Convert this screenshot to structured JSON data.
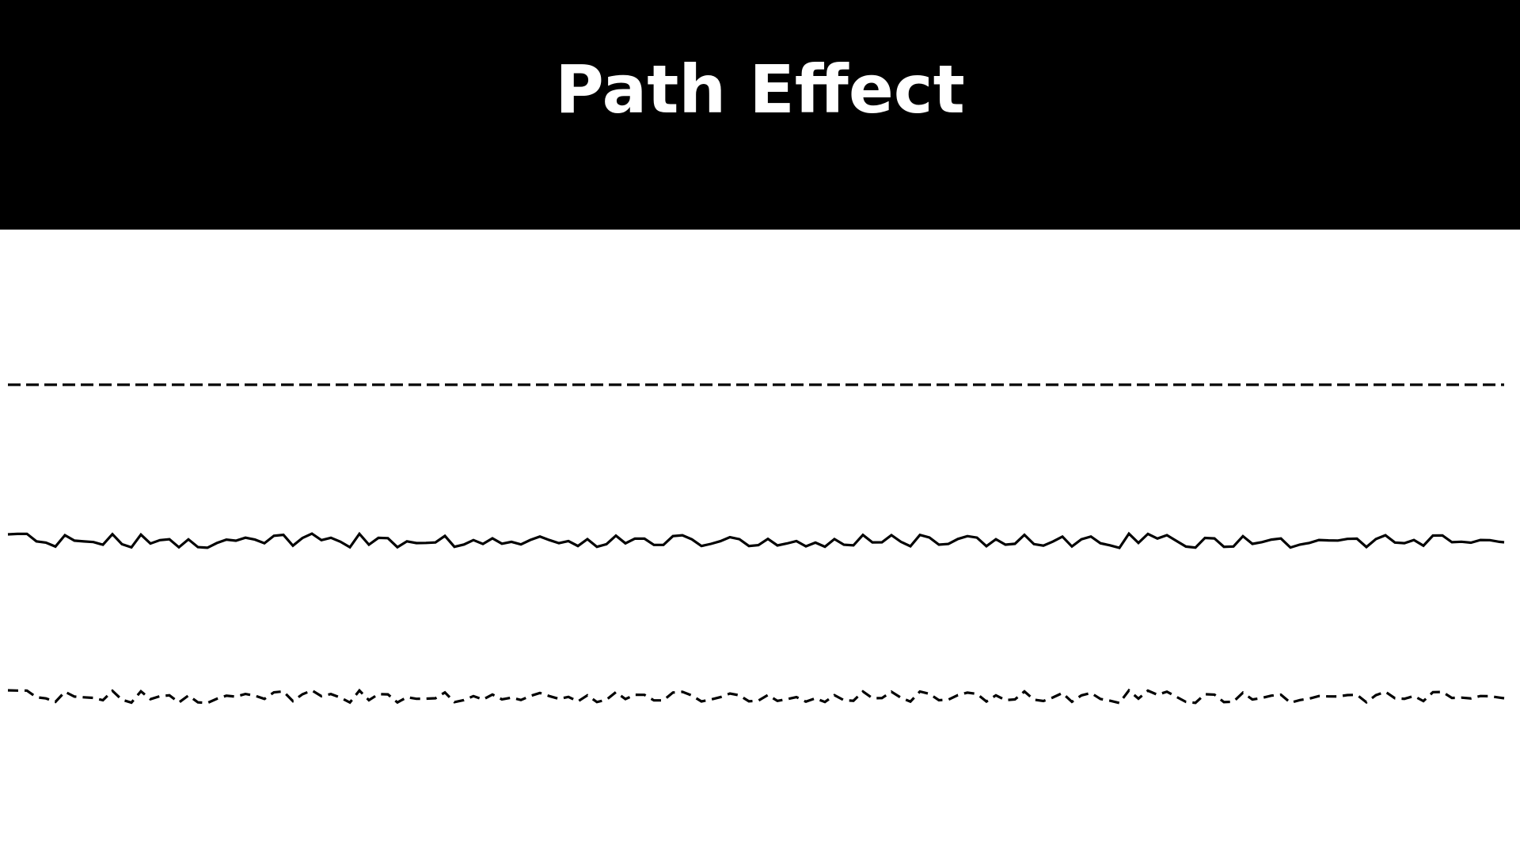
{
  "toolbar": {
    "title": "Path Effect",
    "background_color": "#000000",
    "title_color": "#ffffff"
  },
  "canvas": {
    "background_color": "#ffffff",
    "stroke_color": "#000000",
    "lines": [
      {
        "effect": "dash"
      },
      {
        "effect": "discrete"
      },
      {
        "effect": "discrete-dash"
      }
    ]
  }
}
